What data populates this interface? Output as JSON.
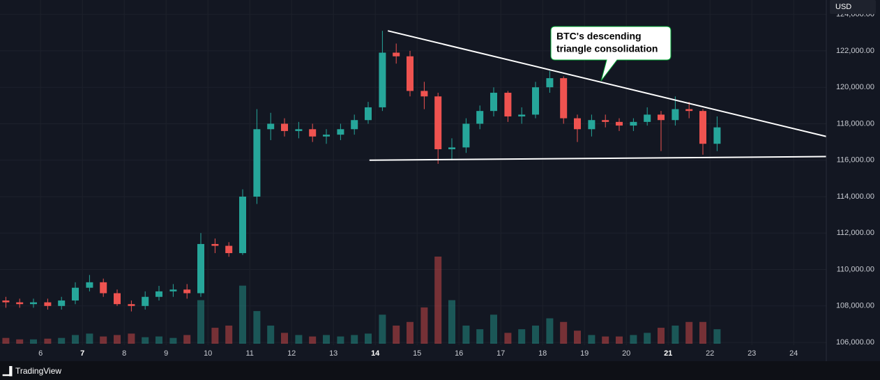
{
  "chart_data": {
    "type": "candlestick",
    "currency": "USD",
    "watermark": "TradingView",
    "annotations": [
      {
        "text_lines": [
          "BTC's descending",
          "triangle consolidation"
        ]
      }
    ],
    "trendlines": [
      {
        "x": [
          14.3,
          24.78
        ],
        "y": [
          123100,
          117300
        ]
      },
      {
        "x": [
          13.86,
          24.78
        ],
        "y": [
          116000,
          116200
        ]
      }
    ],
    "x": [
      5.17,
      5.5,
      5.83,
      6.17,
      6.5,
      6.83,
      7.17,
      7.5,
      7.83,
      8.17,
      8.5,
      8.83,
      9.17,
      9.5,
      9.83,
      10.17,
      10.5,
      10.83,
      11.17,
      11.5,
      11.83,
      12.17,
      12.5,
      12.83,
      13.17,
      13.5,
      13.83,
      14.17,
      14.5,
      14.83,
      15.17,
      15.5,
      15.83,
      16.17,
      16.5,
      16.83,
      17.17,
      17.5,
      17.83,
      18.17,
      18.5,
      18.83,
      19.17,
      19.5,
      19.83,
      20.17,
      20.5,
      20.83,
      21.17,
      21.5,
      21.83,
      22.17
    ],
    "open": [
      108300,
      108200,
      108100,
      108200,
      108000,
      108300,
      109000,
      109300,
      108700,
      108100,
      108000,
      108500,
      108800,
      108900,
      108700,
      111400,
      111300,
      110900,
      114000,
      117700,
      118000,
      117600,
      117700,
      117300,
      117400,
      117700,
      118200,
      118900,
      121900,
      121700,
      119800,
      119500,
      116600,
      116700,
      118000,
      118700,
      119700,
      118400,
      118500,
      120000,
      120500,
      118300,
      117700,
      118200,
      118100,
      117900,
      118100,
      118500,
      118200,
      118800,
      118700,
      116900
    ],
    "high": [
      108500,
      108400,
      108400,
      108400,
      108500,
      109300,
      109700,
      109500,
      108900,
      108300,
      108800,
      109100,
      109200,
      109200,
      112000,
      111700,
      111500,
      114400,
      118800,
      118600,
      118300,
      118100,
      118000,
      117700,
      118000,
      118500,
      119200,
      123100,
      122400,
      122000,
      120300,
      119700,
      117200,
      118300,
      119000,
      120000,
      119800,
      118900,
      120300,
      120900,
      120600,
      118500,
      118500,
      118500,
      118300,
      118300,
      118900,
      118700,
      119500,
      119200,
      118800,
      118400
    ],
    "low": [
      107900,
      107900,
      107900,
      107800,
      107800,
      108100,
      108800,
      108500,
      108000,
      107700,
      107800,
      108300,
      108500,
      108400,
      108500,
      110900,
      110700,
      110800,
      113600,
      117100,
      117300,
      117200,
      117000,
      116900,
      117100,
      117400,
      118000,
      118700,
      121300,
      119500,
      118800,
      115800,
      116000,
      116400,
      117700,
      118400,
      118100,
      118000,
      118300,
      119700,
      118000,
      117000,
      117300,
      117800,
      117600,
      117600,
      117900,
      116500,
      117900,
      118300,
      116300,
      116500
    ],
    "close": [
      108200,
      108100,
      108200,
      108000,
      108300,
      109000,
      109300,
      108700,
      108100,
      108000,
      108500,
      108800,
      108900,
      108700,
      111400,
      111300,
      110900,
      114000,
      117700,
      118000,
      117600,
      117700,
      117300,
      117400,
      117700,
      118200,
      118900,
      121900,
      121700,
      119800,
      119500,
      116600,
      116700,
      118000,
      118700,
      119700,
      118400,
      118500,
      120000,
      120500,
      118300,
      117700,
      118200,
      118100,
      117900,
      118100,
      118500,
      118200,
      118800,
      118700,
      116900,
      117800
    ],
    "volume": [
      8,
      6,
      6,
      7,
      8,
      12,
      14,
      10,
      12,
      14,
      9,
      10,
      8,
      12,
      60,
      22,
      25,
      80,
      45,
      25,
      15,
      12,
      10,
      12,
      10,
      12,
      14,
      40,
      25,
      30,
      50,
      120,
      60,
      25,
      20,
      40,
      15,
      20,
      25,
      35,
      30,
      18,
      12,
      10,
      10,
      12,
      15,
      22,
      25,
      30,
      30,
      20
    ],
    "up_color": "#26a69a",
    "down_color": "#ef5350",
    "xlim": [
      5.03,
      24.78
    ],
    "xticks": [
      6,
      7,
      8,
      9,
      10,
      11,
      12,
      13,
      14,
      15,
      16,
      17,
      18,
      19,
      20,
      21,
      22,
      23,
      24
    ],
    "bold_xticks": [
      7,
      14,
      21
    ],
    "ylim": [
      104970,
      124790
    ],
    "yticks": [
      {
        "value": 106000,
        "label": "106,000.00"
      },
      {
        "value": 108000,
        "label": "108,000.00"
      },
      {
        "value": 110000,
        "label": "110,000.00"
      },
      {
        "value": 112000,
        "label": "112,000.00"
      },
      {
        "value": 114000,
        "label": "114,000.00"
      },
      {
        "value": 116000,
        "label": "116,000.00"
      },
      {
        "value": 118000,
        "label": "118,000.00"
      },
      {
        "value": 120000,
        "label": "120,000.00"
      },
      {
        "value": 122000,
        "label": "122,000.00"
      },
      {
        "value": 124000,
        "label": "124,000.00"
      }
    ],
    "grid": true
  }
}
